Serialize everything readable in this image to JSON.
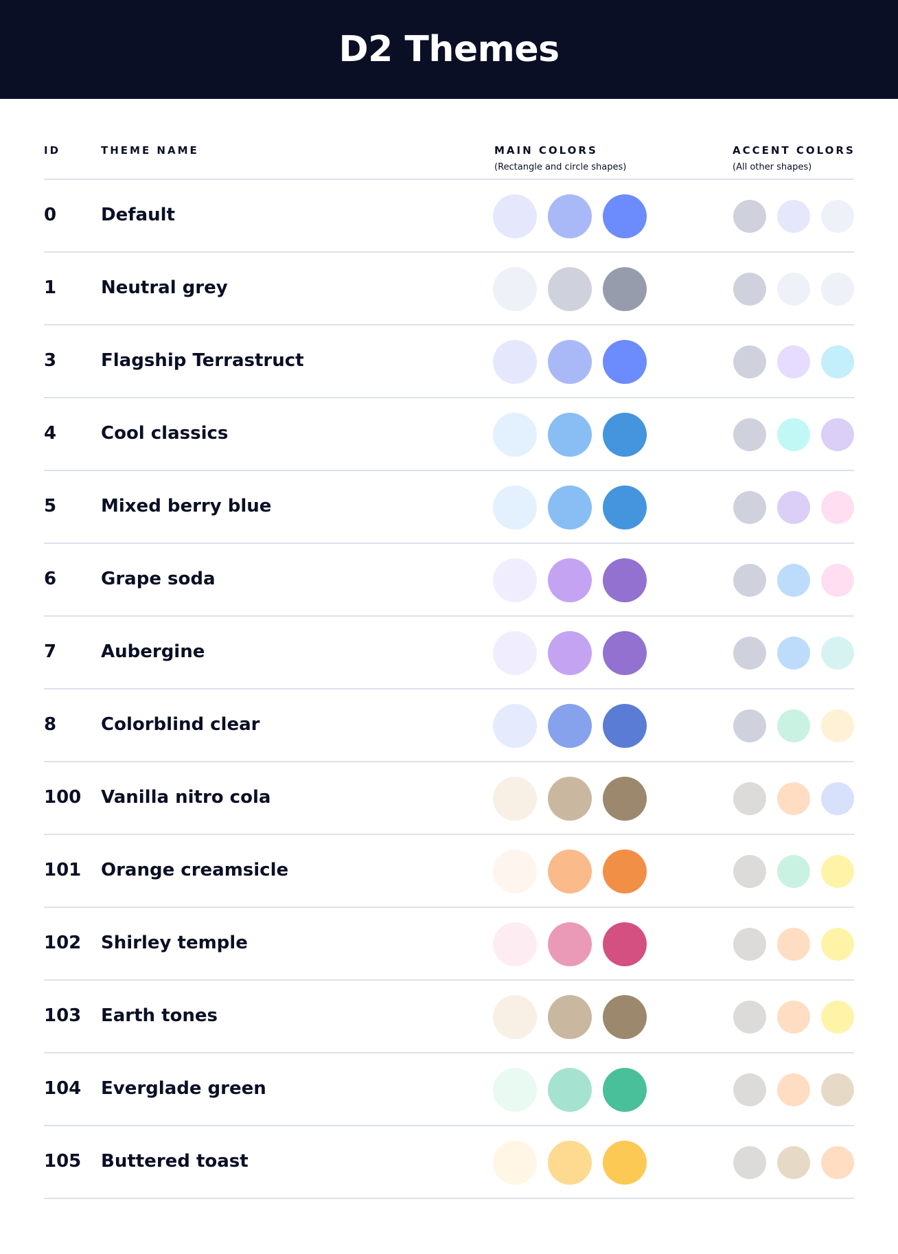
{
  "title": "D2 Themes",
  "columns": {
    "id": "ID",
    "theme_name": "THEME NAME",
    "main_colors": "MAIN COLORS",
    "main_colors_sub": "(Rectangle and circle shapes)",
    "accent_colors": "ACCENT COLORS",
    "accent_colors_sub": "(All other shapes)"
  },
  "themes": [
    {
      "id": "0",
      "name": "Default",
      "main": [
        "#E5E8FC",
        "#A9B8F7",
        "#6C8BFC"
      ],
      "accent": [
        "#CFD2DD",
        "#E5E8FC",
        "#EEF1F8"
      ]
    },
    {
      "id": "1",
      "name": "Neutral grey",
      "main": [
        "#EEF1F8",
        "#CFD2DD",
        "#979CAD"
      ],
      "accent": [
        "#CFD2DD",
        "#EEF1F8",
        "#EEF1F8"
      ]
    },
    {
      "id": "3",
      "name": "Flagship Terrastruct",
      "main": [
        "#E5E8FC",
        "#A9B8F7",
        "#6C8BFC"
      ],
      "accent": [
        "#CFD2DD",
        "#E6DCFF",
        "#C3EEFB"
      ]
    },
    {
      "id": "4",
      "name": "Cool classics",
      "main": [
        "#E3F0FD",
        "#88BEF4",
        "#4495DE"
      ],
      "accent": [
        "#CFD2DD",
        "#C1F8F6",
        "#DBCEF7"
      ]
    },
    {
      "id": "5",
      "name": "Mixed berry blue",
      "main": [
        "#E3F0FD",
        "#88BEF4",
        "#4495DE"
      ],
      "accent": [
        "#CFD2DD",
        "#DBCEF7",
        "#FFDEF1"
      ]
    },
    {
      "id": "6",
      "name": "Grape soda",
      "main": [
        "#F0EEFE",
        "#C4A3F3",
        "#9271D0"
      ],
      "accent": [
        "#CFD2DD",
        "#BDDCFB",
        "#FFDEF1"
      ]
    },
    {
      "id": "7",
      "name": "Aubergine",
      "main": [
        "#F0EEFE",
        "#C4A3F3",
        "#9271D0"
      ],
      "accent": [
        "#CFD2DD",
        "#BDDCFB",
        "#D6F3F1"
      ]
    },
    {
      "id": "8",
      "name": "Colorblind clear",
      "main": [
        "#E5EBFD",
        "#87A2EC",
        "#5A7CD4"
      ],
      "accent": [
        "#CFD2DD",
        "#C9F2E2",
        "#FFF1D6"
      ]
    },
    {
      "id": "100",
      "name": "Vanilla nitro cola",
      "main": [
        "#F8F0E5",
        "#C9B89F",
        "#9C886D"
      ],
      "accent": [
        "#DCDBDA",
        "#FFDDC3",
        "#D7E1FC"
      ]
    },
    {
      "id": "101",
      "name": "Orange creamsicle",
      "main": [
        "#FFF5EF",
        "#FBBA8A",
        "#F28F47"
      ],
      "accent": [
        "#DCDBDA",
        "#C9F2E2",
        "#FFF3A8"
      ]
    },
    {
      "id": "102",
      "name": "Shirley temple",
      "main": [
        "#FDEDF2",
        "#EA99B6",
        "#D35080"
      ],
      "accent": [
        "#DCDBDA",
        "#FFDDC3",
        "#FFF3A8"
      ]
    },
    {
      "id": "103",
      "name": "Earth tones",
      "main": [
        "#F8F0E5",
        "#C9B89F",
        "#9C886D"
      ],
      "accent": [
        "#DCDBDA",
        "#FFDDC3",
        "#FFF3A8"
      ]
    },
    {
      "id": "104",
      "name": "Everglade green",
      "main": [
        "#E8FAF2",
        "#A5E3D0",
        "#49BF9A"
      ],
      "accent": [
        "#DCDBDA",
        "#FFDDC3",
        "#E6DAC7"
      ]
    },
    {
      "id": "105",
      "name": "Buttered toast",
      "main": [
        "#FFF6E5",
        "#FDDA8F",
        "#FCC955"
      ],
      "accent": [
        "#DCDBDA",
        "#E6DAC7",
        "#FFDDC3"
      ]
    }
  ]
}
